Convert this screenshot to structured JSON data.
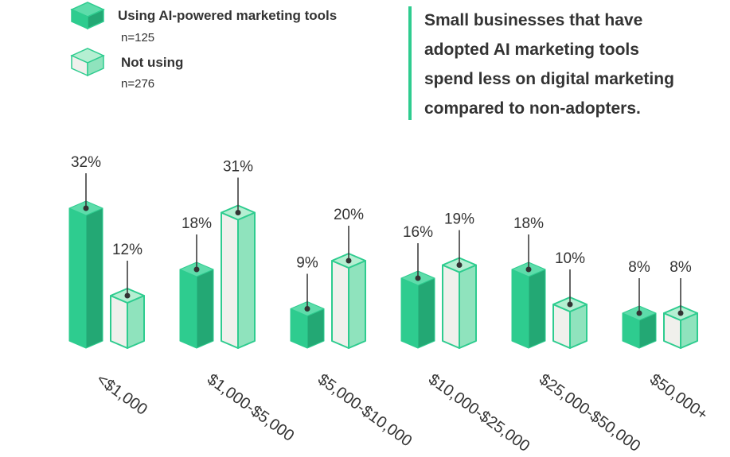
{
  "colors": {
    "adopter_front": "#2ecc8f",
    "adopter_side": "#23a874",
    "adopter_top": "#5ddcaa",
    "nonadopter_front": "#f0f0ec",
    "nonadopter_side": "#8fe3bd",
    "nonadopter_top": "#b5efd2",
    "outline": "#2ecc8f",
    "accent_line": "#2ecc8f",
    "text": "#333333",
    "stem": "#333333"
  },
  "legend": {
    "items": [
      {
        "label": "Using AI-powered marketing tools",
        "n": "n=125",
        "icon": "solid-cube-icon"
      },
      {
        "label": "Not using",
        "n": "n=276",
        "icon": "outline-cube-icon"
      }
    ]
  },
  "headline": {
    "lines": [
      "Small businesses that have",
      "adopted AI marketing tools",
      "spend less on digital marketing",
      "compared to non-adopters."
    ]
  },
  "chart_data": {
    "type": "bar",
    "categories": [
      "<$1,000",
      "$1,000-$5,000",
      "$5,000-$10,000",
      "$10,000-$25,000",
      "$25,000-$50,000",
      "$50,000+"
    ],
    "series": [
      {
        "name": "Using AI-powered marketing tools",
        "values": [
          32,
          18,
          9,
          16,
          18,
          8
        ],
        "labels": [
          "32%",
          "18%",
          "9%",
          "16%",
          "18%",
          "8%"
        ]
      },
      {
        "name": "Not using",
        "values": [
          12,
          31,
          20,
          19,
          10,
          8
        ],
        "labels": [
          "12%",
          "31%",
          "20%",
          "19%",
          "10%",
          "8%"
        ]
      }
    ],
    "unit": "%",
    "grid": false,
    "legend_position": "top-left"
  }
}
